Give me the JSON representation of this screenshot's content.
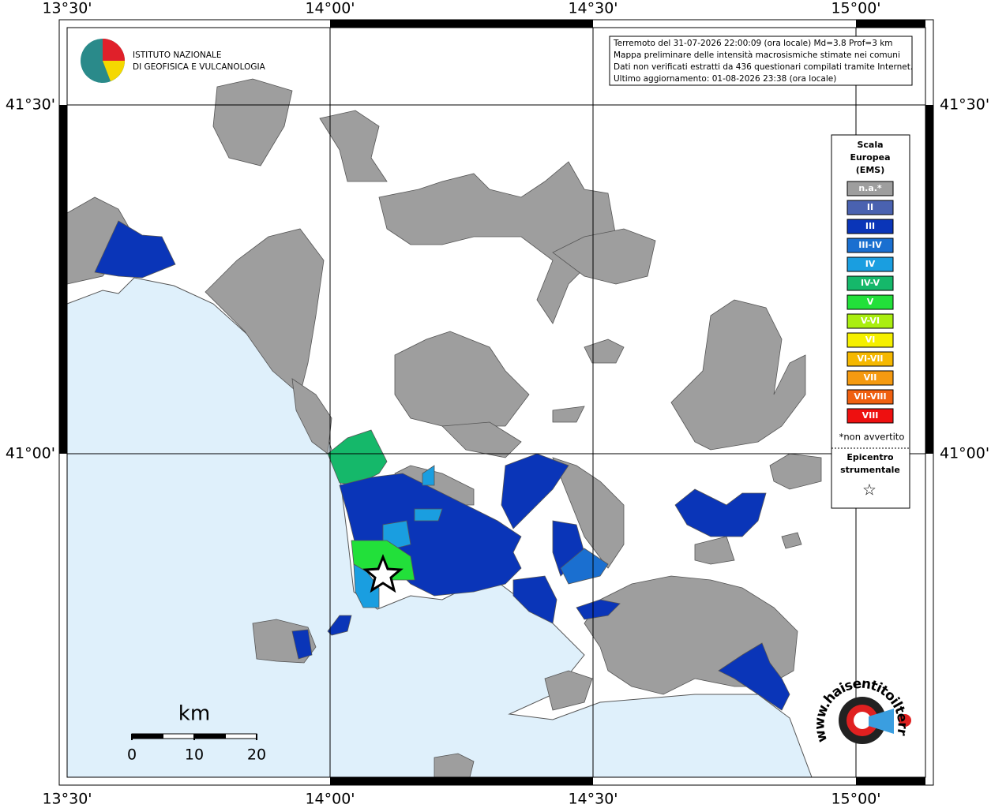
{
  "map": {
    "lon_labels": [
      "13°30'",
      "14°00'",
      "14°30'",
      "15°00'"
    ],
    "lat_labels": [
      "41°30'",
      "41°00'"
    ],
    "logo": {
      "line1": "ISTITUTO NAZIONALE",
      "line2": "DI GEOFISICA E VULCANOLOGIA"
    },
    "info": [
      "Terremoto del 31-07-2026 22:00:09 (ora locale) Md=3.8 Prof=3 km",
      "Mappa preliminare delle intensità macrosismiche stimate nei comuni",
      "Dati non verificati estratti da 436 questionari compilati tramite Internet.",
      "Ultimo aggiornamento: 01-08-2026 23:38 (ora locale)"
    ],
    "legend": {
      "title": [
        "Scala",
        "Europea",
        "(EMS)"
      ],
      "items": [
        {
          "label": "n.a.*",
          "color": "#9e9e9e"
        },
        {
          "label": "II",
          "color": "#4a62b0"
        },
        {
          "label": "III",
          "color": "#0a35b8"
        },
        {
          "label": "III-IV",
          "color": "#1a6fd0"
        },
        {
          "label": "IV",
          "color": "#1a9ee0"
        },
        {
          "label": "IV-V",
          "color": "#15b86a"
        },
        {
          "label": "V",
          "color": "#22e03a"
        },
        {
          "label": "V-VI",
          "color": "#aaee10"
        },
        {
          "label": "VI",
          "color": "#f5f000"
        },
        {
          "label": "VI-VII",
          "color": "#f5b800"
        },
        {
          "label": "VII",
          "color": "#f59a10"
        },
        {
          "label": "VII-VIII",
          "color": "#f06010"
        },
        {
          "label": "VIII",
          "color": "#ee1010"
        }
      ],
      "note": "*non avvertito",
      "epicenter": [
        "Epicentro",
        "strumentale"
      ],
      "star": "☆"
    },
    "scale_bar": {
      "unit": "km",
      "ticks": [
        0,
        10,
        20
      ]
    },
    "site": "www.haisentitoilterremoto.it"
  }
}
